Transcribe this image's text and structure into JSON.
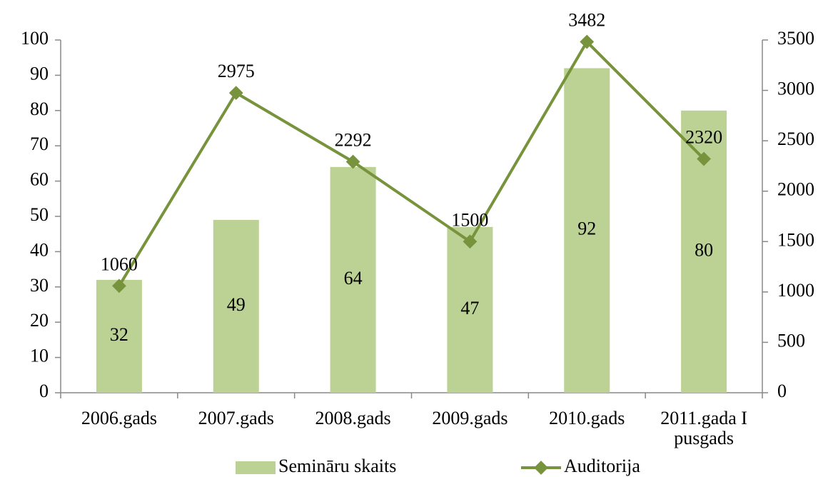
{
  "chart_data": {
    "type": "bar_line",
    "categories": [
      "2006.gads",
      "2007.gads",
      "2008.gads",
      "2009.gads",
      "2010.gads",
      "2011.gada I pusgads"
    ],
    "series": [
      {
        "name": "Semināru skaits",
        "type": "bar",
        "color": "#bcd295",
        "values": [
          32,
          49,
          64,
          47,
          92,
          80
        ]
      },
      {
        "name": "Auditorija",
        "type": "line",
        "axis": "y2",
        "color": "#77933c",
        "values": [
          1060,
          2975,
          2292,
          1500,
          3482,
          2320
        ]
      }
    ],
    "ylim": [
      0,
      100
    ],
    "yticks": [
      0,
      10,
      20,
      30,
      40,
      50,
      60,
      70,
      80,
      90,
      100
    ],
    "y2lim": [
      0,
      3500
    ],
    "y2ticks": [
      0,
      500,
      1000,
      1500,
      2000,
      2500,
      3000,
      3500
    ],
    "legend": "bottom"
  }
}
